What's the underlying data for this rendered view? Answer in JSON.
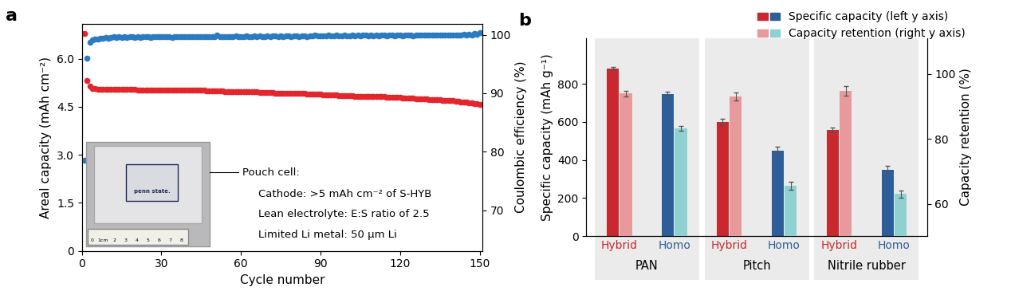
{
  "chart_data": [
    {
      "type": "scatter",
      "panel_label": "a",
      "x": [
        1,
        2,
        3,
        4,
        5,
        6,
        7,
        8,
        9,
        10,
        11,
        12,
        13,
        14,
        15,
        16,
        17,
        18,
        19,
        20,
        21,
        22,
        23,
        24,
        25,
        26,
        27,
        28,
        29,
        30,
        31,
        32,
        33,
        34,
        35,
        36,
        37,
        38,
        39,
        40,
        41,
        42,
        43,
        44,
        45,
        46,
        47,
        48,
        49,
        50,
        51,
        52,
        53,
        54,
        55,
        56,
        57,
        58,
        59,
        60,
        61,
        62,
        63,
        64,
        65,
        66,
        67,
        68,
        69,
        70,
        71,
        72,
        73,
        74,
        75,
        76,
        77,
        78,
        79,
        80,
        81,
        82,
        83,
        84,
        85,
        86,
        87,
        88,
        89,
        90,
        91,
        92,
        93,
        94,
        95,
        96,
        97,
        98,
        99,
        100,
        101,
        102,
        103,
        104,
        105,
        106,
        107,
        108,
        109,
        110,
        111,
        112,
        113,
        114,
        115,
        116,
        117,
        118,
        119,
        120,
        121,
        122,
        123,
        124,
        125,
        126,
        127,
        128,
        129,
        130,
        131,
        132,
        133,
        134,
        135,
        136,
        137,
        138,
        139,
        140,
        141,
        142,
        143,
        144,
        145,
        146,
        147,
        148,
        149,
        150
      ],
      "xlabel": "Cycle number",
      "xlim": [
        0,
        151
      ],
      "xticks": [
        0,
        30,
        60,
        90,
        120,
        150
      ],
      "ylabel": "Areal capacity (mAh cm⁻²)",
      "ylim": [
        0,
        7.1
      ],
      "yticks": [
        0,
        1.5,
        3.0,
        4.5,
        6.0
      ],
      "y2label": "Coulombic efficiency (%)",
      "y2lim": [
        63.1,
        101.9
      ],
      "y2ticks": [
        70,
        80,
        90,
        100
      ],
      "marker": "o",
      "line_style": "none",
      "series": [
        {
          "color": "#e3262c",
          "values": [
            6.78,
            5.33,
            5.15,
            5.08,
            5.06,
            5.05,
            5.05,
            5.05,
            5.05,
            5.05,
            5.04,
            5.04,
            5.04,
            5.04,
            5.04,
            5.04,
            5.04,
            5.04,
            5.04,
            5.04,
            5.03,
            5.03,
            5.03,
            5.03,
            5.03,
            5.03,
            5.03,
            5.03,
            5.03,
            5.03,
            5.02,
            5.02,
            5.02,
            5.02,
            5.02,
            5.02,
            5.02,
            5.02,
            5.01,
            5.01,
            5.01,
            5.01,
            5.01,
            5.01,
            5.01,
            5.01,
            5.0,
            5.0,
            5.0,
            5.0,
            5.0,
            5.0,
            5.0,
            4.98,
            4.98,
            4.98,
            4.98,
            4.98,
            4.98,
            4.98,
            4.97,
            4.97,
            4.97,
            4.97,
            4.97,
            4.97,
            4.95,
            4.95,
            4.95,
            4.95,
            4.95,
            4.95,
            4.93,
            4.93,
            4.93,
            4.93,
            4.93,
            4.93,
            4.91,
            4.91,
            4.91,
            4.91,
            4.91,
            4.91,
            4.89,
            4.89,
            4.89,
            4.89,
            4.89,
            4.89,
            4.87,
            4.87,
            4.87,
            4.87,
            4.87,
            4.87,
            4.85,
            4.85,
            4.85,
            4.85,
            4.85,
            4.85,
            4.83,
            4.83,
            4.83,
            4.83,
            4.83,
            4.83,
            4.81,
            4.81,
            4.81,
            4.81,
            4.81,
            4.81,
            4.79,
            4.79,
            4.79,
            4.79,
            4.79,
            4.79,
            4.77,
            4.77,
            4.77,
            4.77,
            4.77,
            4.75,
            4.75,
            4.75,
            4.75,
            4.75,
            4.72,
            4.72,
            4.72,
            4.72,
            4.72,
            4.7,
            4.7,
            4.7,
            4.7,
            4.7,
            4.68,
            4.67,
            4.66,
            4.65,
            4.64,
            4.63,
            4.62,
            4.61,
            4.6,
            4.58
          ]
        },
        {
          "color": "#2c7bc0",
          "axis": "y2",
          "values": [
            78.5,
            96.0,
            98.7,
            99.1,
            99.2,
            99.3,
            99.4,
            99.4,
            99.5,
            99.4,
            99.5,
            99.6,
            99.5,
            99.6,
            99.5,
            99.7,
            99.5,
            99.6,
            99.6,
            99.5,
            99.6,
            99.5,
            99.6,
            99.7,
            99.6,
            99.5,
            99.6,
            99.6,
            99.7,
            99.6,
            99.6,
            99.7,
            99.6,
            99.5,
            99.6,
            99.7,
            99.6,
            99.6,
            99.7,
            99.6,
            99.7,
            99.6,
            99.6,
            99.7,
            99.6,
            99.7,
            99.7,
            99.6,
            99.7,
            99.6,
            99.9,
            99.7,
            99.6,
            99.7,
            99.7,
            99.6,
            99.7,
            99.8,
            99.7,
            99.7,
            99.7,
            99.8,
            99.7,
            99.7,
            99.8,
            99.7,
            99.8,
            99.7,
            99.7,
            99.8,
            99.7,
            99.8,
            99.8,
            99.7,
            99.8,
            99.7,
            99.8,
            99.8,
            99.7,
            99.8,
            99.8,
            99.7,
            99.8,
            99.8,
            99.7,
            99.8,
            99.8,
            99.9,
            99.8,
            99.8,
            99.8,
            99.8,
            99.9,
            99.8,
            99.8,
            99.9,
            99.8,
            99.8,
            99.9,
            99.8,
            99.8,
            99.9,
            99.8,
            99.9,
            99.8,
            99.9,
            99.9,
            99.8,
            99.9,
            99.8,
            99.9,
            99.8,
            99.9,
            99.9,
            99.8,
            99.9,
            99.9,
            99.8,
            99.9,
            99.9,
            99.8,
            99.9,
            99.9,
            99.9,
            99.8,
            99.9,
            99.9,
            99.9,
            100.0,
            99.9,
            99.9,
            99.9,
            100.0,
            99.9,
            99.9,
            100.0,
            99.9,
            100.0,
            99.9,
            100.0,
            100.0,
            99.9,
            100.0,
            100.1,
            100.0,
            100.1,
            100.0,
            100.2,
            100.1,
            100.3
          ]
        }
      ],
      "annotations": [
        "Pouch cell:",
        "Cathode: >5 mAh cm⁻² of S-HYB",
        "Lean electrolyte: E:S ratio of 2.5",
        "Limited Li metal: 50 µm Li"
      ],
      "inset": {
        "label": "penn state.",
        "ruler_labels": [
          "0",
          "1cm",
          "2",
          "3",
          "4",
          "5",
          "6",
          "7",
          "8"
        ]
      }
    },
    {
      "type": "bar",
      "panel_label": "b",
      "groups": [
        "PAN",
        "Pitch",
        "Nitrile rubber"
      ],
      "categories": [
        "Hybrid",
        "Homo",
        "Hybrid",
        "Homo",
        "Hybrid",
        "Homo"
      ],
      "ylabel": "Specific capacity (mAh g⁻¹)",
      "ylim": [
        0,
        1040
      ],
      "yticks": [
        0,
        200,
        400,
        600,
        800
      ],
      "y2label": "Capacity retention (%)",
      "y2lim": [
        50.1,
        111
      ],
      "y2ticks": [
        60,
        80,
        100
      ],
      "legend": "upper right",
      "series": [
        {
          "name": "Specific capacity (left y axis)",
          "colors": [
            "#c8282e",
            "#2d5e9a",
            "#c8282e",
            "#2d5e9a",
            "#c8282e",
            "#2d5e9a"
          ],
          "values": [
            882,
            748,
            600,
            450,
            558,
            348
          ],
          "errors": [
            8,
            10,
            15,
            20,
            12,
            20
          ]
        },
        {
          "name": "Capacity retention (right y axis)",
          "axis": "y2",
          "colors": [
            "#e8999b",
            "#8fd0d0",
            "#e8999b",
            "#8fd0d0",
            "#e8999b",
            "#8fd0d0"
          ],
          "values": [
            94.0,
            83.2,
            93.0,
            65.6,
            94.8,
            63.0
          ],
          "errors": [
            0.8,
            0.7,
            1.2,
            1.3,
            1.4,
            1.2
          ]
        }
      ]
    }
  ]
}
